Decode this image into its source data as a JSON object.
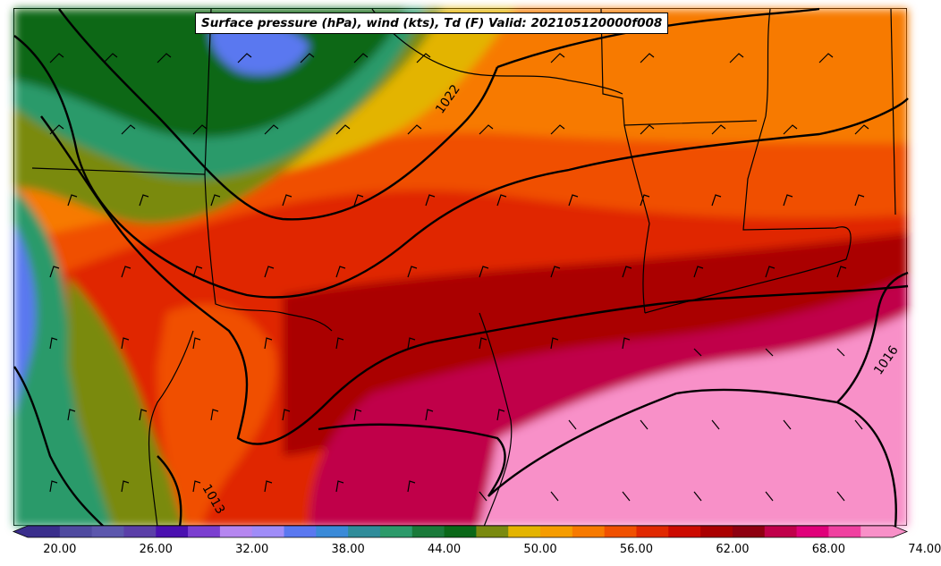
{
  "title": "Surface pressure (hPa), wind (kts), Td (F) Valid: 202105120000f008",
  "isobar_labels": [
    "1022",
    "1016",
    "1013"
  ],
  "colorbar": {
    "tick_labels": [
      "20.00",
      "26.00",
      "32.00",
      "38.00",
      "44.00",
      "50.00",
      "56.00",
      "62.00",
      "68.00",
      "74.00"
    ],
    "colors": [
      "#3a2e8c",
      "#4f4aa0",
      "#5c57ad",
      "#5b3fa8",
      "#4a10b0",
      "#7b3fd0",
      "#b586f0",
      "#9f8cf8",
      "#5a78f0",
      "#3a8ad8",
      "#2f8c9a",
      "#2c9a6a",
      "#1a7a3a",
      "#0a6818",
      "#7a8a10",
      "#e3b400",
      "#f59c00",
      "#f77a00",
      "#f05000",
      "#e02800",
      "#cc0a00",
      "#aa0000",
      "#8e0010",
      "#c0004a",
      "#e0007a",
      "#f040a0",
      "#f890c8"
    ]
  }
}
